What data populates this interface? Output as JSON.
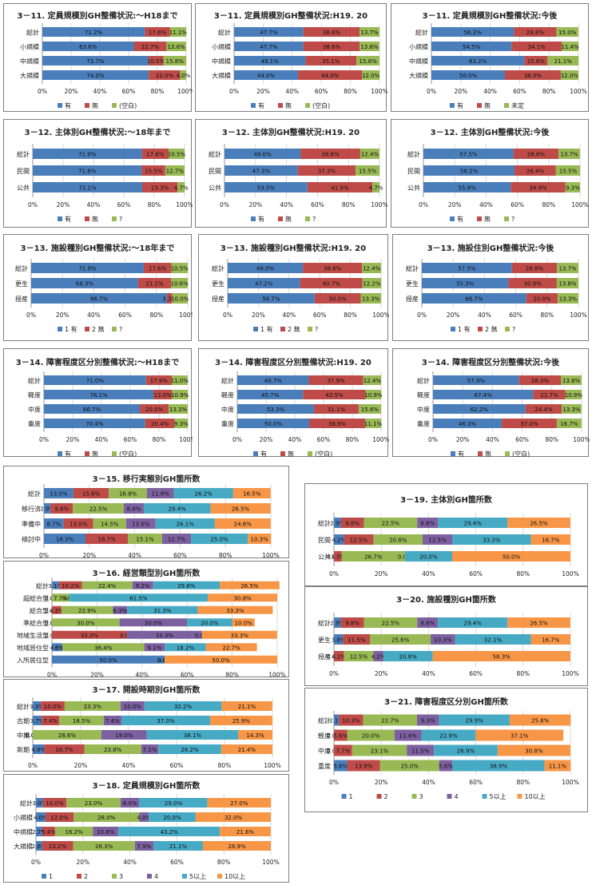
{
  "colors": {
    "blue": "#4a7ebb",
    "red": "#be4b48",
    "green": "#98b954",
    "purple": "#7d60a0",
    "cyan": "#46aac5",
    "orange": "#f79646"
  },
  "legends": {
    "hm_blank": [
      "有",
      "無",
      "(空白)"
    ],
    "hm_mitei": [
      "有",
      "無",
      "未定"
    ],
    "hm_q": [
      "有",
      "無",
      "?"
    ],
    "num_q": [
      "1 有",
      "2 無",
      "?"
    ],
    "six": [
      "1",
      "2",
      "3",
      "4",
      "5以上",
      "10以上"
    ]
  },
  "chart_data": [
    {
      "id": "c11a",
      "type": "bar",
      "title": "3－11. 定員規模別GH整備状況:～H18まで",
      "categories": [
        "総計",
        "小規模",
        "中規模",
        "大規模"
      ],
      "series": [
        {
          "name": "有",
          "values": [
            71.2,
            63.6,
            73.7,
            74.0
          ]
        },
        {
          "name": "無",
          "values": [
            17.6,
            22.7,
            10.5,
            22.0
          ]
        },
        {
          "name": "(空白)",
          "values": [
            11.1,
            13.6,
            15.8,
            4.0
          ]
        }
      ]
    },
    {
      "id": "c11b",
      "type": "bar",
      "title": "3－11. 定員規模別GH整備状況:H19. 20",
      "categories": [
        "総計",
        "小規模",
        "中規模",
        "大規模"
      ],
      "series": [
        {
          "name": "有",
          "values": [
            47.7,
            47.7,
            49.1,
            44.0
          ]
        },
        {
          "name": "無",
          "values": [
            38.6,
            38.6,
            35.1,
            44.0
          ]
        },
        {
          "name": "(空白)",
          "values": [
            13.7,
            13.6,
            15.8,
            12.0
          ]
        }
      ]
    },
    {
      "id": "c11c",
      "type": "bar",
      "title": "3－11. 定員規模別GH整備状況:今後",
      "categories": [
        "総計",
        "小規模",
        "中規模",
        "大規模"
      ],
      "series": [
        {
          "name": "有",
          "values": [
            56.2,
            54.5,
            63.2,
            50.0
          ]
        },
        {
          "name": "無",
          "values": [
            28.8,
            34.1,
            15.8,
            38.0
          ]
        },
        {
          "name": "未定",
          "values": [
            15.0,
            11.4,
            21.1,
            12.0
          ]
        }
      ]
    },
    {
      "id": "c12a",
      "type": "bar",
      "title": "3－12. 主体別GH整備状況:～18年まで",
      "categories": [
        "総計",
        "民間",
        "公共"
      ],
      "series": [
        {
          "name": "有",
          "values": [
            71.9,
            71.8,
            72.1
          ]
        },
        {
          "name": "無",
          "values": [
            17.6,
            15.5,
            23.3
          ]
        },
        {
          "name": "?",
          "values": [
            10.5,
            12.7,
            4.7
          ]
        }
      ]
    },
    {
      "id": "c12b",
      "type": "bar",
      "title": "3－12. 主体別GH整備状況:H19. 20",
      "categories": [
        "総計",
        "民間",
        "公共"
      ],
      "series": [
        {
          "name": "有",
          "values": [
            49.0,
            47.3,
            53.5
          ]
        },
        {
          "name": "無",
          "values": [
            38.6,
            37.3,
            41.9
          ]
        },
        {
          "name": "?",
          "values": [
            12.4,
            15.5,
            4.7
          ]
        }
      ]
    },
    {
      "id": "c12c",
      "type": "bar",
      "title": "3－12. 主体別GH整備状況:今後",
      "categories": [
        "総計",
        "民間",
        "公共"
      ],
      "series": [
        {
          "name": "有",
          "values": [
            57.5,
            58.2,
            55.8
          ]
        },
        {
          "name": "無",
          "values": [
            28.8,
            26.4,
            34.9
          ]
        },
        {
          "name": "?",
          "values": [
            13.7,
            15.5,
            9.3
          ]
        }
      ]
    },
    {
      "id": "c13a",
      "type": "bar",
      "title": "3－13. 施設種別GH整備状況:～18年まで",
      "categories": [
        "総計",
        "更生",
        "授産"
      ],
      "series": [
        {
          "name": "1 有",
          "values": [
            71.9,
            68.3,
            86.7
          ]
        },
        {
          "name": "2 無",
          "values": [
            17.6,
            21.1,
            3.3
          ]
        },
        {
          "name": "?",
          "values": [
            10.5,
            10.6,
            10.0
          ]
        }
      ]
    },
    {
      "id": "c13b",
      "type": "bar",
      "title": "3－13. 施設種別GH整備状況:H19. 20",
      "categories": [
        "総計",
        "更生",
        "授産"
      ],
      "series": [
        {
          "name": "1 有",
          "values": [
            49.0,
            47.2,
            56.7
          ]
        },
        {
          "name": "2 無",
          "values": [
            38.6,
            40.7,
            30.0
          ]
        },
        {
          "name": "?",
          "values": [
            12.4,
            12.2,
            13.3
          ]
        }
      ]
    },
    {
      "id": "c13c",
      "type": "bar",
      "title": "3－13. 施設住別GH整備状況:今後",
      "categories": [
        "総計",
        "更生",
        "授産"
      ],
      "series": [
        {
          "name": "1 有",
          "values": [
            57.5,
            55.3,
            66.7
          ]
        },
        {
          "name": "2 無",
          "values": [
            28.8,
            30.9,
            20.0
          ]
        },
        {
          "name": "?",
          "values": [
            13.7,
            13.8,
            13.3
          ]
        }
      ]
    },
    {
      "id": "c14a",
      "type": "bar",
      "title": "3－14. 障害程度区分別整備状況:～H18まで",
      "categories": [
        "総計",
        "軽度",
        "中度",
        "重度"
      ],
      "series": [
        {
          "name": "有",
          "values": [
            71.0,
            76.1,
            66.7,
            70.4
          ]
        },
        {
          "name": "無",
          "values": [
            17.9,
            13.0,
            20.0,
            20.4
          ]
        },
        {
          "name": "(空白)",
          "values": [
            11.0,
            10.9,
            13.3,
            9.3
          ]
        }
      ]
    },
    {
      "id": "c14b",
      "type": "bar",
      "title": "3－14. 障害程度区分別整備状況:H19. 20",
      "categories": [
        "総計",
        "軽度",
        "中度",
        "重度"
      ],
      "series": [
        {
          "name": "有",
          "values": [
            49.7,
            45.7,
            53.3,
            50.0
          ]
        },
        {
          "name": "無",
          "values": [
            37.9,
            43.5,
            31.1,
            38.9
          ]
        },
        {
          "name": "(空白)",
          "values": [
            12.4,
            10.9,
            15.6,
            11.1
          ]
        }
      ]
    },
    {
      "id": "c14c",
      "type": "bar",
      "title": "3－14. 障害程度区分別整備状況:今後",
      "categories": [
        "総計",
        "軽度",
        "中度",
        "重度"
      ],
      "series": [
        {
          "name": "有",
          "values": [
            57.9,
            67.4,
            62.2,
            46.3
          ]
        },
        {
          "name": "無",
          "values": [
            28.3,
            21.7,
            24.4,
            37.0
          ]
        },
        {
          "name": "(空白)",
          "values": [
            13.8,
            10.9,
            13.3,
            16.7
          ]
        }
      ]
    },
    {
      "id": "c15",
      "type": "bar",
      "title": "3－15. 移行実態別GH箇所数",
      "categories": [
        "総計",
        "移行済",
        "準備中",
        "検討中"
      ],
      "series": [
        {
          "name": "1",
          "values": [
            13.0,
            2.9,
            8.7,
            18.3
          ]
        },
        {
          "name": "2",
          "values": [
            15.6,
            9.8,
            13.0,
            18.7
          ]
        },
        {
          "name": "3",
          "values": [
            16.8,
            22.5,
            14.5,
            15.1
          ]
        },
        {
          "name": "4",
          "values": [
            11.8,
            8.8,
            13.0,
            12.7
          ]
        },
        {
          "name": "5以上",
          "values": [
            26.2,
            29.4,
            26.1,
            25.0
          ]
        },
        {
          "name": "10以上",
          "values": [
            16.5,
            26.5,
            24.6,
            10.3
          ]
        }
      ]
    },
    {
      "id": "c16",
      "type": "bar",
      "title": "3－16. 経営類型別GH箇所数",
      "categories": [
        "総計",
        "超総合型",
        "総合型",
        "準総合型",
        "地域生活型",
        "地域居住型",
        "入所居住型"
      ],
      "series": [
        {
          "name": "1",
          "values": [
            3.1,
            0.0,
            0.0,
            0.0,
            0.0,
            4.5,
            50.0
          ]
        },
        {
          "name": "2",
          "values": [
            10.2,
            0.0,
            4.2,
            0.0,
            33.3,
            0.1,
            0.0
          ]
        },
        {
          "name": "3",
          "values": [
            22.4,
            7.7,
            22.9,
            30.0,
            0.0,
            36.4,
            0.0
          ]
        },
        {
          "name": "4",
          "values": [
            9.2,
            0.0,
            6.3,
            30.0,
            33.3,
            9.1,
            0.0
          ]
        },
        {
          "name": "5以上",
          "values": [
            29.6,
            61.5,
            31.3,
            20.0,
            0.0,
            18.2,
            0.0
          ]
        },
        {
          "name": "10以上",
          "values": [
            26.5,
            30.8,
            33.3,
            10.0,
            33.3,
            22.7,
            50.0
          ]
        }
      ]
    },
    {
      "id": "c17",
      "type": "bar",
      "title": "3－17. 開設時期別GH箇所数",
      "categories": [
        "総計",
        "古期",
        "中期",
        "新期"
      ],
      "series": [
        {
          "name": "1",
          "values": [
            3.3,
            3.7,
            0.0,
            4.8
          ]
        },
        {
          "name": "2",
          "values": [
            10.0,
            7.4,
            0.0,
            16.7
          ]
        },
        {
          "name": "3",
          "values": [
            23.3,
            18.5,
            28.6,
            23.8
          ]
        },
        {
          "name": "4",
          "values": [
            10.0,
            7.4,
            19.0,
            7.1
          ]
        },
        {
          "name": "5以上",
          "values": [
            32.2,
            37.0,
            38.1,
            26.2
          ]
        },
        {
          "name": "10以上",
          "values": [
            21.1,
            25.9,
            14.3,
            21.4
          ]
        }
      ]
    },
    {
      "id": "c18",
      "type": "bar",
      "title": "3－18. 定員規模別GH箇所数",
      "categories": [
        "総計",
        "小規模",
        "中規模",
        "大規模"
      ],
      "series": [
        {
          "name": "1",
          "values": [
            3.0,
            4.0,
            2.7,
            2.6
          ]
        },
        {
          "name": "2",
          "values": [
            10.0,
            12.0,
            5.4,
            13.2
          ]
        },
        {
          "name": "3",
          "values": [
            23.0,
            28.0,
            16.2,
            26.3
          ]
        },
        {
          "name": "4",
          "values": [
            8.0,
            4.0,
            10.8,
            7.9
          ]
        },
        {
          "name": "5以上",
          "values": [
            29.0,
            20.0,
            43.2,
            21.1
          ]
        },
        {
          "name": "10以上",
          "values": [
            27.0,
            32.0,
            21.6,
            28.9
          ]
        }
      ]
    },
    {
      "id": "c19",
      "type": "bar",
      "title": "3－19. 主体別GH箇所数",
      "categories": [
        "総計",
        "民間",
        "公共"
      ],
      "series": [
        {
          "name": "1",
          "values": [
            2.9,
            4.2,
            0.0
          ]
        },
        {
          "name": "2",
          "values": [
            9.8,
            12.5,
            3.3
          ]
        },
        {
          "name": "3",
          "values": [
            22.5,
            20.8,
            26.7
          ]
        },
        {
          "name": "4",
          "values": [
            8.8,
            12.5,
            0.0
          ]
        },
        {
          "name": "5以上",
          "values": [
            29.4,
            33.3,
            20.0
          ]
        },
        {
          "name": "10以上",
          "values": [
            26.5,
            16.7,
            50.0
          ]
        }
      ]
    },
    {
      "id": "c20",
      "type": "bar",
      "title": "3－20. 施設種別GH箇所数",
      "categories": [
        "総計",
        "更生",
        "授産"
      ],
      "series": [
        {
          "name": "1",
          "values": [
            2.9,
            3.8,
            0.0
          ]
        },
        {
          "name": "2",
          "values": [
            9.8,
            11.5,
            4.2
          ]
        },
        {
          "name": "3",
          "values": [
            22.5,
            25.6,
            12.5
          ]
        },
        {
          "name": "4",
          "values": [
            8.8,
            10.3,
            4.2
          ]
        },
        {
          "name": "5以上",
          "values": [
            29.4,
            32.1,
            20.8
          ]
        },
        {
          "name": "10以上",
          "values": [
            26.5,
            16.7,
            58.3
          ]
        }
      ]
    },
    {
      "id": "c21",
      "type": "bar",
      "title": "3－21. 障害程度区分別GH箇所数",
      "categories": [
        "総計",
        "軽度",
        "中度",
        "重度"
      ],
      "series": [
        {
          "name": "1",
          "values": [
            2.1,
            0.0,
            0.0,
            5.6
          ]
        },
        {
          "name": "2",
          "values": [
            10.3,
            5.6,
            7.7,
            13.9
          ]
        },
        {
          "name": "3",
          "values": [
            22.7,
            20.0,
            23.1,
            25.0
          ]
        },
        {
          "name": "4",
          "values": [
            9.3,
            11.4,
            11.5,
            5.6
          ]
        },
        {
          "name": "5以上",
          "values": [
            29.9,
            22.9,
            26.9,
            38.9
          ]
        },
        {
          "name": "10以上",
          "values": [
            25.8,
            37.1,
            30.8,
            11.1
          ]
        }
      ]
    }
  ],
  "axis_ticks": [
    "0%",
    "20%",
    "40%",
    "60%",
    "80%",
    "100%"
  ]
}
